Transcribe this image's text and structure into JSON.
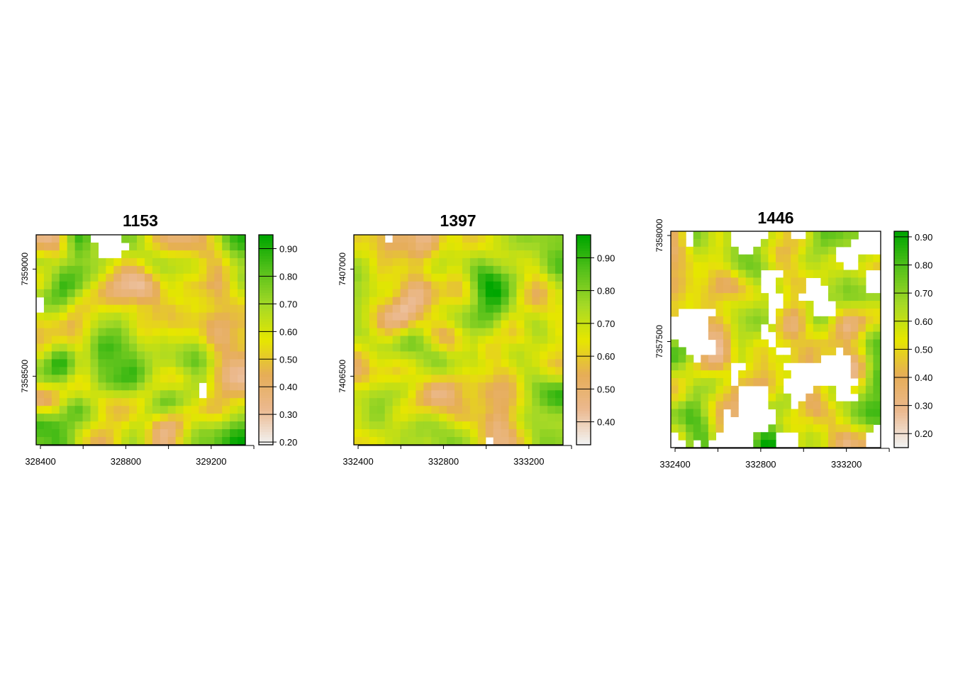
{
  "chart_data": [
    {
      "type": "heatmap",
      "title": "1153",
      "grid_size": [
        27,
        27
      ],
      "x_ticks": [
        328400,
        328800,
        329200
      ],
      "y_ticks": [
        7358500,
        7359000
      ],
      "x_range": [
        328380,
        329360
      ],
      "y_range": [
        7358180,
        7359160
      ],
      "colorbar": {
        "ticks": [
          0.2,
          0.3,
          0.4,
          0.5,
          0.6,
          0.7,
          0.8,
          0.9
        ],
        "range": [
          0.19,
          0.95
        ]
      },
      "seed": 1153,
      "missing_fraction": "low, clustered along top edge and right side",
      "colors": [
        "#f2f2f2",
        "#ebb98f",
        "#e6ad57",
        "#e6e600",
        "#a6d926",
        "#57c11b",
        "#00a600"
      ]
    },
    {
      "type": "heatmap",
      "title": "1397",
      "grid_size": [
        27,
        27
      ],
      "x_ticks": [
        332400,
        332800,
        333200
      ],
      "y_ticks": [
        7406500,
        7407000
      ],
      "x_range": [
        332380,
        333360
      ],
      "y_range": [
        7406180,
        7407160
      ],
      "colorbar": {
        "ticks": [
          0.4,
          0.5,
          0.6,
          0.7,
          0.8,
          0.9
        ],
        "range": [
          0.33,
          0.97
        ]
      },
      "seed": 1397,
      "missing_fraction": "very low, a few cells near top right",
      "colors": [
        "#f2f2f2",
        "#ebb98f",
        "#e6ad57",
        "#e6e600",
        "#a6d926",
        "#57c11b",
        "#00a600"
      ]
    },
    {
      "type": "heatmap",
      "title": "1446",
      "grid_size": [
        28,
        28
      ],
      "x_ticks": [
        332400,
        332800,
        333200
      ],
      "y_ticks": [
        7357500,
        7358000
      ],
      "x_range": [
        332380,
        333360
      ],
      "y_range": [
        7357000,
        7358020
      ],
      "colorbar": {
        "ticks": [
          0.2,
          0.3,
          0.4,
          0.5,
          0.6,
          0.7,
          0.8,
          0.9
        ],
        "range": [
          0.15,
          0.92
        ]
      },
      "seed": 1446,
      "missing_fraction": "high, large blank patches",
      "colors": [
        "#f2f2f2",
        "#ebb98f",
        "#e6ad57",
        "#e6e600",
        "#a6d926",
        "#57c11b",
        "#00a600"
      ]
    }
  ]
}
